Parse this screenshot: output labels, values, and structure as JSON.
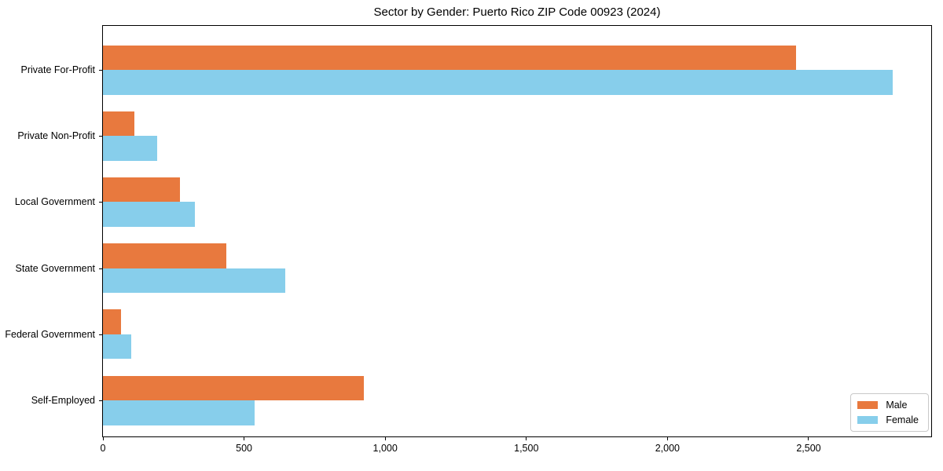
{
  "chart_data": {
    "type": "bar",
    "orientation": "horizontal",
    "title": "Sector by Gender: Puerto Rico ZIP Code 00923 (2024)",
    "xlabel": "",
    "ylabel": "",
    "categories": [
      "Private For-Profit",
      "Private Non-Profit",
      "Local Government",
      "State Government",
      "Federal Government",
      "Self-Employed"
    ],
    "series": [
      {
        "name": "Male",
        "color": "#e8793e",
        "values": [
          2455,
          110,
          273,
          437,
          64,
          925
        ]
      },
      {
        "name": "Female",
        "color": "#87ceeb",
        "values": [
          2798,
          192,
          326,
          645,
          100,
          536
        ]
      }
    ],
    "xlim": [
      0,
      2940
    ],
    "xticks": [
      0,
      500,
      1000,
      1500,
      2000,
      2500
    ],
    "xtick_labels": [
      "0",
      "500",
      "1,000",
      "1,500",
      "2,000",
      "2,500"
    ],
    "grid": false,
    "legend_position": "lower right"
  }
}
